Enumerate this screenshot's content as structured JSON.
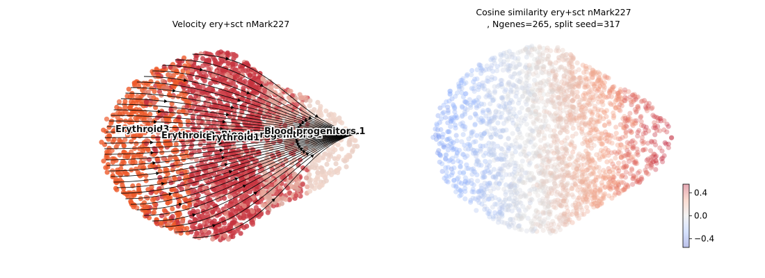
{
  "chart_data": [
    {
      "type": "scatter",
      "title": "Velocity ery+sct nMark227",
      "style": "umap-embedding-with-velocity-streamlines",
      "colors": {
        "Erythroid3": "#ee5a2a",
        "Erythroid2": "#c5333f",
        "Erythroid1": "#cf4a52",
        "Blood progenitors 2": "#e8a79b",
        "Blood progenitors 1": "#f0d5c9",
        "streamline": "#000000"
      },
      "cluster_labels": [
        {
          "name": "Erythroid3"
        },
        {
          "name": "Erythroid2"
        },
        {
          "name": "Blood progenitors 2"
        },
        {
          "name": "Erythroid1"
        },
        {
          "name": "Blood progenitors 1"
        }
      ]
    },
    {
      "type": "scatter",
      "title_line1": "Cosine similarity ery+sct nMark227",
      "title_line2": ", Ngenes=265, split seed=317",
      "style": "umap-embedding-colored-by-value",
      "colormap": "coolwarm",
      "colorbar": {
        "range": [
          -0.55,
          0.55
        ],
        "ticks": [
          0.4,
          0.0,
          -0.4
        ],
        "tick_labels": [
          "0.4",
          "0.0",
          "−0.4"
        ]
      }
    }
  ]
}
